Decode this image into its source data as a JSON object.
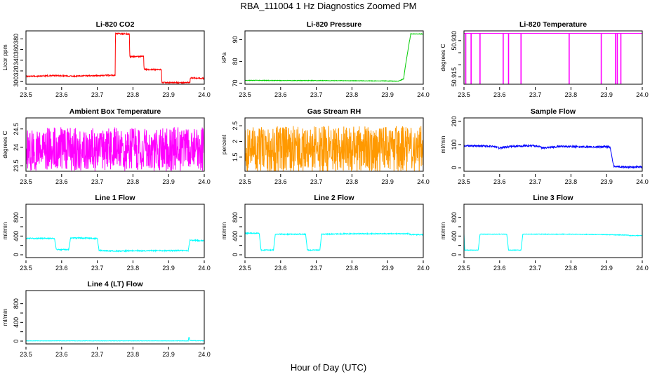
{
  "figure": {
    "title": "RBA_111004  1 Hz Diagnostics Zoomed PM",
    "xlabel": "Hour of Day (UTC)"
  },
  "chart_data": [
    {
      "type": "line",
      "title": "Li-820 CO2",
      "ylabel": "Licor ppm",
      "color": "#ff0000",
      "xlim": [
        23.5,
        24.0
      ],
      "ylim": [
        295,
        395
      ],
      "xticks": [
        23.5,
        23.6,
        23.7,
        23.8,
        23.9,
        24.0
      ],
      "yticks": [
        300,
        320,
        340,
        360,
        380
      ],
      "points": [
        [
          23.5,
          310
        ],
        [
          23.53,
          310
        ],
        [
          23.56,
          311
        ],
        [
          23.6,
          311
        ],
        [
          23.63,
          310
        ],
        [
          23.66,
          311
        ],
        [
          23.69,
          311
        ],
        [
          23.75,
          312
        ],
        [
          23.751,
          390
        ],
        [
          23.79,
          389
        ],
        [
          23.791,
          347
        ],
        [
          23.83,
          347
        ],
        [
          23.831,
          323
        ],
        [
          23.88,
          322
        ],
        [
          23.881,
          298
        ],
        [
          23.96,
          298
        ],
        [
          23.961,
          307
        ],
        [
          23.98,
          306
        ],
        [
          24.0,
          306
        ]
      ],
      "noise": 1.2
    },
    {
      "type": "line",
      "title": "Li-820 Pressure",
      "ylabel": "kPa",
      "color": "#00cc00",
      "xlim": [
        23.5,
        24.0
      ],
      "ylim": [
        69.5,
        94
      ],
      "xticks": [
        23.5,
        23.6,
        23.7,
        23.8,
        23.9,
        24.0
      ],
      "yticks": [
        70,
        80,
        90
      ],
      "points": [
        [
          23.5,
          71.3
        ],
        [
          23.6,
          71.2
        ],
        [
          23.7,
          71.2
        ],
        [
          23.8,
          71.1
        ],
        [
          23.9,
          71.0
        ],
        [
          23.93,
          70.9
        ],
        [
          23.945,
          72
        ],
        [
          23.95,
          78
        ],
        [
          23.96,
          88
        ],
        [
          23.965,
          92.6
        ],
        [
          24.0,
          92.6
        ]
      ],
      "noise": 0.12
    },
    {
      "type": "line",
      "title": "Li-820 Temperature",
      "ylabel": "degrees C",
      "color": "#ff00ff",
      "xlim": [
        23.5,
        24.0
      ],
      "ylim": [
        50.912,
        50.934
      ],
      "xticks": [
        23.5,
        23.6,
        23.7,
        23.8,
        23.9,
        24.0
      ],
      "yticks": [
        50.915,
        50.92,
        50.925,
        50.93
      ],
      "yticklabels": [
        "50.915",
        "",
        "",
        "50.930"
      ],
      "points": [
        [
          23.5,
          50.933
        ],
        [
          24.0,
          50.933
        ]
      ],
      "spikes": [
        23.505,
        23.52,
        23.545,
        23.61,
        23.625,
        23.66,
        23.795,
        23.885,
        23.925,
        23.93,
        23.94
      ],
      "spike_to": 50.912,
      "noise": 0
    },
    {
      "type": "line",
      "title": "Ambient Box Temperature",
      "ylabel": "degrees C",
      "color": "#ff00ff",
      "xlim": [
        23.5,
        24.0
      ],
      "ylim": [
        23.35,
        24.8
      ],
      "xticks": [
        23.5,
        23.6,
        23.7,
        23.8,
        23.9,
        24.0
      ],
      "yticks": [
        23.5,
        24.0,
        24.5
      ],
      "points": [
        [
          23.5,
          23.95
        ],
        [
          24.0,
          23.95
        ]
      ],
      "noise": 0.6
    },
    {
      "type": "line",
      "title": "Gas Stream RH",
      "ylabel": "percent",
      "color": "#ff9900",
      "xlim": [
        23.5,
        24.0
      ],
      "ylim": [
        1.05,
        2.75
      ],
      "xticks": [
        23.5,
        23.6,
        23.7,
        23.8,
        23.9,
        24.0
      ],
      "yticks": [
        1.5,
        2.0,
        2.5
      ],
      "points": [
        [
          23.5,
          1.75
        ],
        [
          24.0,
          1.75
        ]
      ],
      "noise": 0.75
    },
    {
      "type": "line",
      "title": "Sample Flow",
      "ylabel": "ml/min",
      "color": "#0000ff",
      "xlim": [
        23.5,
        24.0
      ],
      "ylim": [
        -15,
        215
      ],
      "xticks": [
        23.5,
        23.6,
        23.7,
        23.8,
        23.9,
        24.0
      ],
      "yticks": [
        0,
        100,
        200
      ],
      "points": [
        [
          23.5,
          95
        ],
        [
          23.55,
          94
        ],
        [
          23.58,
          92
        ],
        [
          23.6,
          85
        ],
        [
          23.63,
          92
        ],
        [
          23.67,
          95
        ],
        [
          23.71,
          94
        ],
        [
          23.72,
          85
        ],
        [
          23.75,
          88
        ],
        [
          23.76,
          92
        ],
        [
          23.8,
          91
        ],
        [
          23.85,
          90
        ],
        [
          23.9,
          91
        ],
        [
          23.91,
          89
        ],
        [
          23.92,
          5
        ],
        [
          23.95,
          3
        ],
        [
          24.0,
          3
        ]
      ],
      "noise": 4
    },
    {
      "type": "line",
      "title": "Line 1 Flow",
      "ylabel": "ml/min",
      "color": "#00ffff",
      "xlim": [
        23.5,
        24.0
      ],
      "ylim": [
        -60,
        1080
      ],
      "xticks": [
        23.5,
        23.6,
        23.7,
        23.8,
        23.9,
        24.0
      ],
      "yticks": [
        0,
        200,
        400,
        600,
        800
      ],
      "yticklabels": [
        "0",
        "",
        "400",
        "",
        "800"
      ],
      "points": [
        [
          23.5,
          350
        ],
        [
          23.58,
          350
        ],
        [
          23.585,
          110
        ],
        [
          23.62,
          110
        ],
        [
          23.625,
          360
        ],
        [
          23.7,
          350
        ],
        [
          23.705,
          90
        ],
        [
          23.75,
          80
        ],
        [
          23.8,
          85
        ],
        [
          23.9,
          88
        ],
        [
          23.955,
          90
        ],
        [
          23.96,
          310
        ],
        [
          24.0,
          300
        ]
      ],
      "noise": 12
    },
    {
      "type": "line",
      "title": "Line 2 Flow",
      "ylabel": "ml/min",
      "color": "#00ffff",
      "xlim": [
        23.5,
        24.0
      ],
      "ylim": [
        -60,
        1080
      ],
      "xticks": [
        23.5,
        23.6,
        23.7,
        23.8,
        23.9,
        24.0
      ],
      "yticks": [
        0,
        200,
        400,
        600,
        800
      ],
      "yticklabels": [
        "0",
        "",
        "400",
        "",
        "800"
      ],
      "points": [
        [
          23.5,
          460
        ],
        [
          23.54,
          460
        ],
        [
          23.545,
          100
        ],
        [
          23.58,
          100
        ],
        [
          23.585,
          440
        ],
        [
          23.67,
          440
        ],
        [
          23.675,
          100
        ],
        [
          23.71,
          100
        ],
        [
          23.715,
          440
        ],
        [
          23.8,
          450
        ],
        [
          23.9,
          450
        ],
        [
          23.96,
          450
        ],
        [
          23.965,
          430
        ],
        [
          24.0,
          430
        ]
      ],
      "noise": 10
    },
    {
      "type": "line",
      "title": "Line 3 Flow",
      "ylabel": "ml/min",
      "color": "#00ffff",
      "xlim": [
        23.5,
        24.0
      ],
      "ylim": [
        -60,
        1080
      ],
      "xticks": [
        23.5,
        23.6,
        23.7,
        23.8,
        23.9,
        24.0
      ],
      "yticks": [
        0,
        200,
        400,
        600,
        800
      ],
      "yticklabels": [
        "0",
        "",
        "400",
        "",
        "800"
      ],
      "points": [
        [
          23.5,
          440
        ],
        [
          23.502,
          100
        ],
        [
          23.54,
          100
        ],
        [
          23.545,
          440
        ],
        [
          23.62,
          440
        ],
        [
          23.625,
          100
        ],
        [
          23.66,
          100
        ],
        [
          23.665,
          440
        ],
        [
          23.8,
          440
        ],
        [
          23.9,
          430
        ],
        [
          23.96,
          420
        ],
        [
          23.965,
          410
        ],
        [
          24.0,
          410
        ]
      ],
      "noise": 6
    },
    {
      "type": "line",
      "title": "Line 4 (LT) Flow",
      "ylabel": "ml/min",
      "color": "#00ffff",
      "xlim": [
        23.5,
        24.0
      ],
      "ylim": [
        -60,
        1080
      ],
      "xticks": [
        23.5,
        23.6,
        23.7,
        23.8,
        23.9,
        24.0
      ],
      "yticks": [
        0,
        200,
        400,
        600,
        800
      ],
      "yticklabels": [
        "0",
        "",
        "400",
        "",
        "800"
      ],
      "points": [
        [
          23.5,
          5
        ],
        [
          23.6,
          5
        ],
        [
          23.7,
          5
        ],
        [
          23.8,
          5
        ],
        [
          23.9,
          5
        ],
        [
          23.955,
          5
        ],
        [
          23.957,
          90
        ],
        [
          23.96,
          10
        ],
        [
          24.0,
          5
        ]
      ],
      "noise": 4
    }
  ]
}
